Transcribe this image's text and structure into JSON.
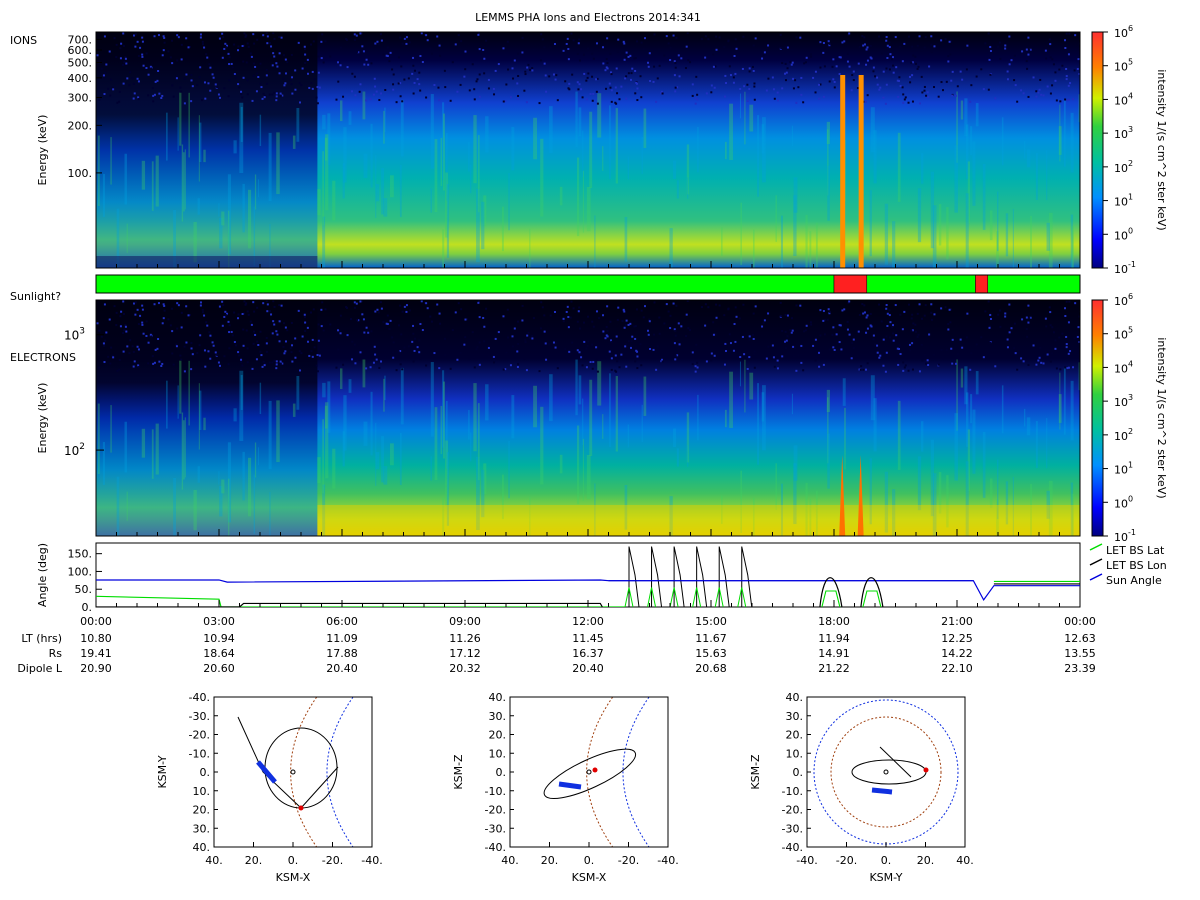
{
  "title": "LEMMS PHA Ions and Electrons  2014:341",
  "colors": {
    "day": "#00ff00",
    "night": "#ff2020",
    "lat": "#00dd00",
    "lon": "#000000",
    "sun": "#0000dd",
    "magnetopause": "#1030e0",
    "bowshock": "#a04010",
    "orbit": "#000000",
    "marker": "#e00000",
    "track": "#1030e0"
  },
  "chart_data": [
    {
      "type": "heatmap",
      "label": "IONS",
      "ylabel": "Energy (keV)",
      "yscale": "log",
      "ylim": [
        25,
        780
      ],
      "yticks": [
        "100.",
        "200.",
        "300.",
        "400.",
        "500.",
        "600.",
        "700."
      ],
      "ytick_values": [
        100,
        200,
        300,
        400,
        500,
        600,
        700
      ],
      "colorbar_label": "intensity 1/(s cm^2 ster keV)",
      "colorbar_range": [
        0.1,
        1000000
      ],
      "colorbar_ticks": [
        {
          "base": "10",
          "exp": "6"
        },
        {
          "base": "10",
          "exp": "5"
        },
        {
          "base": "10",
          "exp": "4"
        },
        {
          "base": "10",
          "exp": "3"
        },
        {
          "base": "10",
          "exp": "2"
        },
        {
          "base": "10",
          "exp": "1"
        },
        {
          "base": "10",
          "exp": "0"
        },
        {
          "base": "10",
          "exp": "-1"
        }
      ]
    },
    {
      "type": "table",
      "label": "Sunlight?",
      "segments": [
        {
          "from_hour": 0.0,
          "to_hour": 18.0,
          "state": "day"
        },
        {
          "from_hour": 18.0,
          "to_hour": 18.8,
          "state": "night"
        },
        {
          "from_hour": 18.8,
          "to_hour": 21.45,
          "state": "day"
        },
        {
          "from_hour": 21.45,
          "to_hour": 21.75,
          "state": "night"
        },
        {
          "from_hour": 21.75,
          "to_hour": 24.0,
          "state": "day"
        }
      ]
    },
    {
      "type": "heatmap",
      "label": "ELECTRONS",
      "ylabel": "Energy (keV)",
      "yscale": "log",
      "ylim": [
        18,
        2000
      ],
      "ytick_labels": [
        {
          "base": "10",
          "exp": "2",
          "value": 100
        },
        {
          "base": "10",
          "exp": "3",
          "value": 1000
        }
      ],
      "colorbar_label": "intensity 1/(s cm^2 ster keV)",
      "colorbar_range": [
        0.1,
        1000000
      ],
      "colorbar_ticks": [
        {
          "base": "10",
          "exp": "6"
        },
        {
          "base": "10",
          "exp": "5"
        },
        {
          "base": "10",
          "exp": "4"
        },
        {
          "base": "10",
          "exp": "3"
        },
        {
          "base": "10",
          "exp": "2"
        },
        {
          "base": "10",
          "exp": "1"
        },
        {
          "base": "10",
          "exp": "0"
        },
        {
          "base": "10",
          "exp": "-1"
        }
      ]
    },
    {
      "type": "line",
      "ylabel": "Angle (deg)",
      "ylim": [
        0,
        180
      ],
      "yticks": [
        "0.",
        "50.",
        "100.",
        "150."
      ],
      "ytick_values": [
        0,
        50,
        100,
        150
      ],
      "legend": [
        "LET BS Lat",
        "LET BS Lon",
        "Sun Angle"
      ],
      "series": [
        {
          "name": "LET BS Lat",
          "x": [
            0,
            3.0,
            3.05,
            12.4,
            12.9
          ],
          "y": [
            30,
            22,
            0,
            0,
            0
          ]
        },
        {
          "name": "LET BS Lon",
          "x": [
            0,
            3.5,
            3.6,
            12.3,
            12.35
          ],
          "y": [
            0,
            0,
            10,
            10,
            0
          ]
        },
        {
          "name": "Sun Angle",
          "x": [
            0,
            3.0,
            3.2,
            12.3,
            12.5,
            21.4,
            21.65,
            21.9,
            24
          ],
          "y": [
            76,
            76,
            70,
            76,
            74,
            74,
            20,
            60,
            60
          ]
        }
      ]
    }
  ],
  "time_axis": {
    "hours": [
      0,
      3,
      6,
      9,
      12,
      15,
      18,
      21,
      24
    ],
    "labels": [
      "00:00",
      "03:00",
      "06:00",
      "09:00",
      "12:00",
      "15:00",
      "18:00",
      "21:00",
      "00:00"
    ]
  },
  "ephemeris": [
    {
      "name": "LT (hrs)",
      "values": [
        "10.80",
        "10.94",
        "11.09",
        "11.26",
        "11.45",
        "11.67",
        "11.94",
        "12.25",
        "12.63"
      ]
    },
    {
      "name": "Rs",
      "values": [
        "19.41",
        "18.64",
        "17.88",
        "17.12",
        "16.37",
        "15.63",
        "14.91",
        "14.22",
        "13.55"
      ]
    },
    {
      "name": "Dipole L",
      "values": [
        "20.90",
        "20.60",
        "20.40",
        "20.32",
        "20.40",
        "20.68",
        "21.22",
        "22.10",
        "23.39"
      ]
    }
  ],
  "orbit_plots": [
    {
      "xlabel": "KSM-X",
      "ylabel": "KSM-Y",
      "xticks": [
        "40.",
        "20.",
        "0.",
        "-20.",
        "-40."
      ],
      "yticks": [
        "-40.",
        "-30.",
        "-20.",
        "-10.",
        "0.",
        "10.",
        "20.",
        "30.",
        "40."
      ]
    },
    {
      "xlabel": "KSM-X",
      "ylabel": "KSM-Z",
      "xticks": [
        "40.",
        "20.",
        "0.",
        "-20.",
        "-40."
      ],
      "yticks": [
        "40.",
        "30.",
        "20.",
        "10.",
        "0.",
        "-10.",
        "-20.",
        "-30.",
        "-40."
      ]
    },
    {
      "xlabel": "KSM-Y",
      "ylabel": "KSM-Z",
      "xticks": [
        "-40.",
        "-20.",
        "0.",
        "20.",
        "40."
      ],
      "yticks": [
        "40.",
        "30.",
        "20.",
        "10.",
        "0.",
        "-10.",
        "-20.",
        "-30.",
        "-40."
      ]
    }
  ]
}
